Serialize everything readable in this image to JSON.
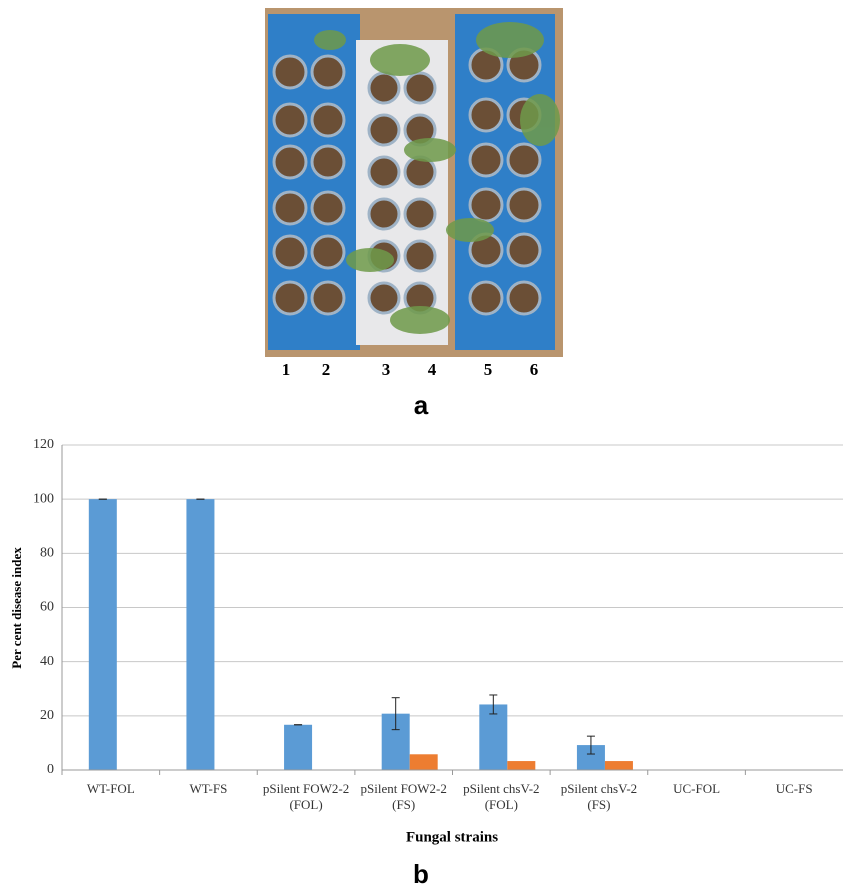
{
  "panel_a": {
    "lane_labels": [
      "1",
      "2",
      "3",
      "4",
      "5",
      "6"
    ],
    "label": "a"
  },
  "panel_b_label": "b",
  "chart_data": {
    "type": "bar",
    "y_label": "Per cent disease index",
    "x_label": "Fungal strains",
    "categories": [
      "WT-FOL",
      "WT-FS",
      "pSilent FOW2-2 (FOL)",
      "pSilent FOW2-2 (FS)",
      "pSilent chsV-2 (FOL)",
      "pSilent chsV-2 (FS)",
      "UC-FOL",
      "UC-FS"
    ],
    "series": [
      {
        "color": "#5b9bd5",
        "values": [
          100,
          100,
          16.7,
          20.8,
          24.2,
          9.2,
          0,
          0
        ],
        "errors": [
          0,
          0,
          0,
          5.9,
          3.5,
          3.3,
          0,
          0
        ]
      },
      {
        "color": "#ed7d31",
        "values": [
          0,
          0,
          0,
          5.8,
          3.3,
          3.3,
          0,
          0
        ]
      }
    ],
    "ylim": [
      0,
      120
    ],
    "yticks": [
      0,
      20,
      40,
      60,
      80,
      100,
      120
    ],
    "grid": true
  }
}
